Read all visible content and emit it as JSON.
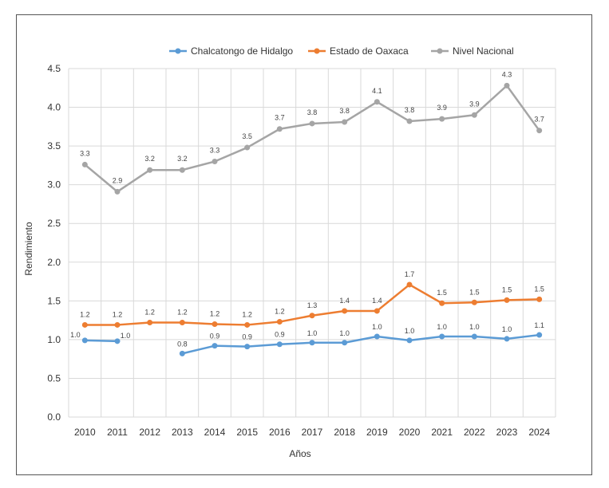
{
  "chart_data": {
    "type": "line",
    "title": "",
    "xlabel": "Años",
    "ylabel": "Rendimiento",
    "ylim": [
      0,
      4.5
    ],
    "yticks": [
      "0.0",
      "0.5",
      "1.0",
      "1.5",
      "2.0",
      "2.5",
      "3.0",
      "3.5",
      "4.0",
      "4.5"
    ],
    "categories": [
      "2010",
      "2011",
      "2012",
      "2013",
      "2014",
      "2015",
      "2016",
      "2017",
      "2018",
      "2019",
      "2020",
      "2021",
      "2022",
      "2023",
      "2024"
    ],
    "grid": true,
    "legend": "top-center",
    "series": [
      {
        "name": "Chalcatongo de Hidalgo",
        "color": "#5b9bd5",
        "values": [
          0.99,
          0.98,
          null,
          0.82,
          0.92,
          0.91,
          0.94,
          0.96,
          0.96,
          1.04,
          0.99,
          1.04,
          1.04,
          1.01,
          1.06
        ],
        "labels": [
          "1.0",
          "1.0",
          "",
          "0.8",
          "0.9",
          "0.9",
          "0.9",
          "1.0",
          "1.0",
          "1.0",
          "1.0",
          "1.0",
          "1.0",
          "1.0",
          "1.1"
        ]
      },
      {
        "name": "Estado de Oaxaca",
        "color": "#ed7d31",
        "values": [
          1.19,
          1.19,
          1.22,
          1.22,
          1.2,
          1.19,
          1.23,
          1.31,
          1.37,
          1.37,
          1.71,
          1.47,
          1.48,
          1.51,
          1.52
        ],
        "labels": [
          "1.2",
          "1.2",
          "1.2",
          "1.2",
          "1.2",
          "1.2",
          "1.2",
          "1.3",
          "1.4",
          "1.4",
          "1.7",
          "1.5",
          "1.5",
          "1.5",
          "1.5"
        ]
      },
      {
        "name": "Nivel Nacional",
        "color": "#a5a5a5",
        "values": [
          3.26,
          2.91,
          3.19,
          3.19,
          3.3,
          3.48,
          3.72,
          3.79,
          3.81,
          4.07,
          3.82,
          3.85,
          3.9,
          4.28,
          3.7
        ],
        "labels": [
          "3.3",
          "2.9",
          "3.2",
          "3.2",
          "3.3",
          "3.5",
          "3.7",
          "3.8",
          "3.8",
          "4.1",
          "3.8",
          "3.9",
          "3.9",
          "4.3",
          "3.7"
        ]
      }
    ]
  }
}
